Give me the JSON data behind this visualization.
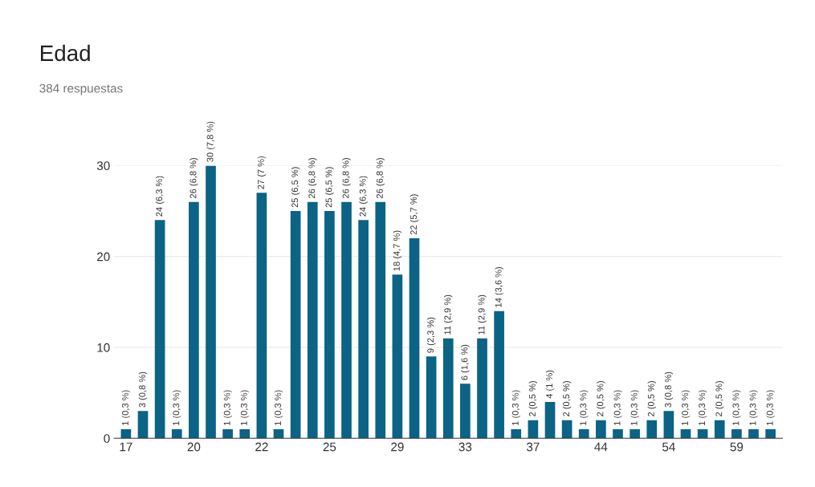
{
  "chart_data": {
    "type": "bar",
    "title": "Edad",
    "subtitle": "384 respuestas",
    "categories": [
      "17",
      null,
      null,
      null,
      "20",
      null,
      null,
      null,
      "22",
      null,
      null,
      null,
      "25",
      null,
      null,
      null,
      "29",
      null,
      null,
      null,
      "33",
      null,
      null,
      null,
      "37",
      null,
      null,
      null,
      "44",
      null,
      null,
      null,
      "54",
      null,
      null,
      null,
      "59",
      null,
      null
    ],
    "values": [
      1,
      3,
      24,
      1,
      26,
      30,
      1,
      1,
      27,
      1,
      25,
      26,
      25,
      26,
      24,
      26,
      18,
      22,
      9,
      11,
      6,
      11,
      14,
      1,
      2,
      4,
      2,
      1,
      2,
      1,
      1,
      2,
      3,
      1,
      1,
      2,
      1,
      1,
      1
    ],
    "value_labels": [
      "1 (0,3 %)",
      "3 (0,8 %)",
      "24 (6,3 %)",
      "1 (0,3 %)",
      "26 (6,8 %)",
      "30 (7,8 %)",
      "1 (0,3 %)",
      "1 (0,3 %)",
      "27 (7 %)",
      "1 (0,3 %)",
      "25 (6,5 %)",
      "26 (6,8 %)",
      "25 (6,5 %)",
      "26 (6,8 %)",
      "24 (6,3 %)",
      "26 (6,8 %)",
      "18 (4,7 %)",
      "22 (5,7 %)",
      "9 (2,3 %)",
      "11 (2,9 %)",
      "6 (1,6 %)",
      "11 (2,9 %)",
      "14 (3,6 %)",
      "1 (0,3 %)",
      "2 (0,5 %)",
      "4 (1 %)",
      "2 (0,5 %)",
      "1 (0,3 %)",
      "2 (0,5 %)",
      "1 (0,3 %)",
      "1 (0,3 %)",
      "2 (0,5 %)",
      "3 (0,8 %)",
      "1 (0,3 %)",
      "1 (0,3 %)",
      "2 (0,5 %)",
      "1 (0,3 %)",
      "1 (0,3 %)",
      "1 (0,3 %)"
    ],
    "color": "#0b6385",
    "ylim": [
      0,
      30
    ],
    "yticks": [
      0,
      10,
      20,
      30
    ],
    "grid": "y"
  }
}
